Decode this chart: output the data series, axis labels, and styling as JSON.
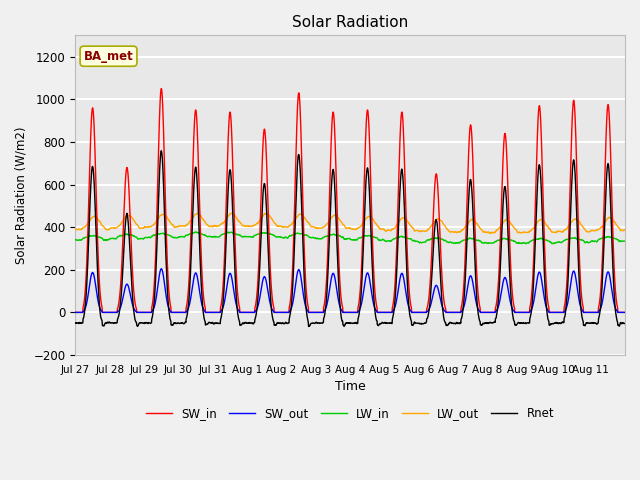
{
  "title": "Solar Radiation",
  "xlabel": "Time",
  "ylabel": "Solar Radiation (W/m2)",
  "ylim": [
    -200,
    1300
  ],
  "yticks": [
    -200,
    0,
    200,
    400,
    600,
    800,
    1000,
    1200
  ],
  "annotation": "BA_met",
  "annotation_color": "#8B0000",
  "annotation_bg": "#FFFFE0",
  "legend_labels": [
    "SW_in",
    "SW_out",
    "LW_in",
    "LW_out",
    "Rnet"
  ],
  "line_colors": {
    "SW_in": "#FF0000",
    "SW_out": "#0000FF",
    "LW_in": "#00CC00",
    "LW_out": "#FFA500",
    "Rnet": "#000000"
  },
  "xtick_labels": [
    "Jul 27",
    "Jul 28",
    "Jul 29",
    "Jul 30",
    "Jul 31",
    "Aug 1",
    "Aug 2",
    "Aug 3",
    "Aug 4",
    "Aug 5",
    "Aug 6",
    "Aug 7",
    "Aug 8",
    "Aug 9",
    "Aug 10",
    "Aug 11"
  ],
  "num_days": 16,
  "background_color": "#F0F0F0",
  "plot_bg": "#E8E8E8",
  "grid_color": "#FFFFFF",
  "figsize": [
    6.4,
    4.8
  ],
  "dpi": 100,
  "sw_peaks": [
    960,
    680,
    1050,
    950,
    940,
    860,
    1030,
    940,
    950,
    940,
    650,
    880,
    840,
    970,
    995,
    975
  ],
  "sw_out_ratio": 0.195,
  "lw_in_base": 340,
  "lw_out_base": 390,
  "night_rnet": -80
}
